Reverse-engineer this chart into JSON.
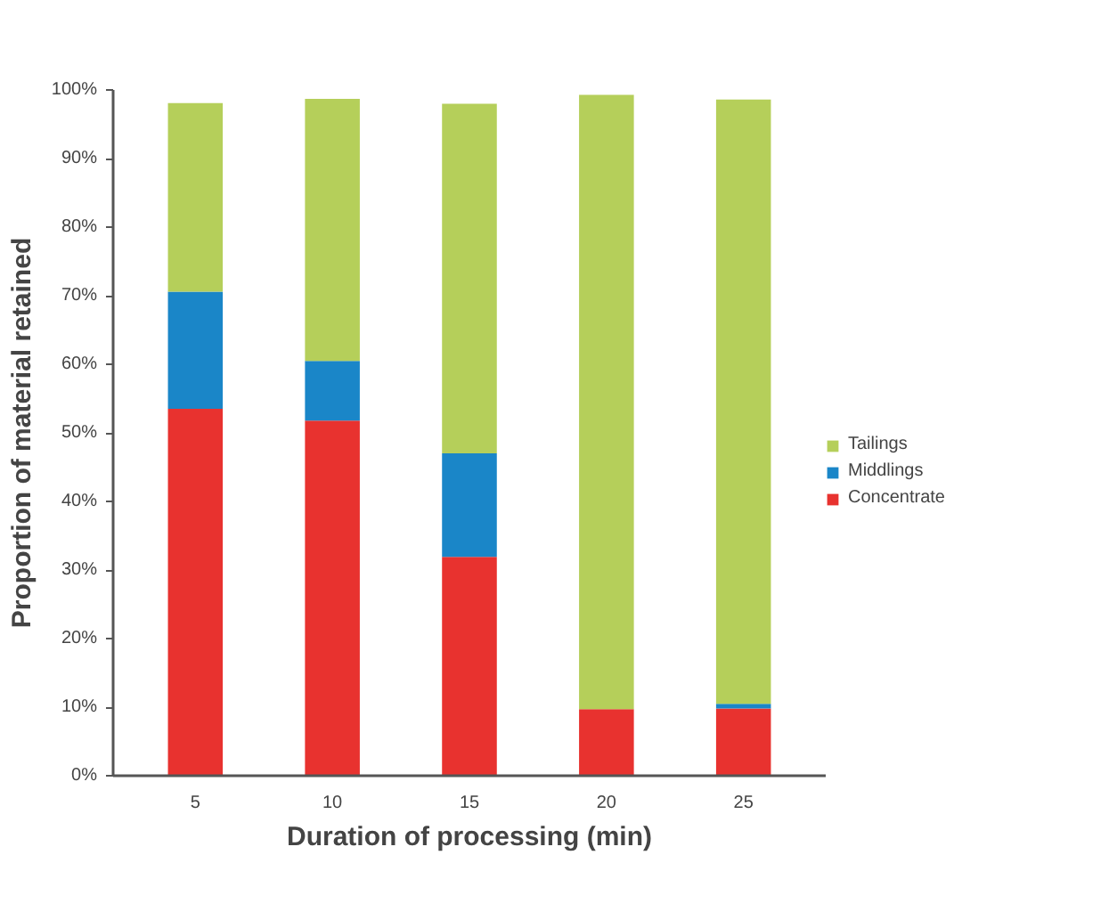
{
  "chart_data": {
    "type": "bar",
    "stacked": true,
    "xlabel": "Duration of processing (min)",
    "ylabel": "Proportion of material retained",
    "categories": [
      "5",
      "10",
      "15",
      "20",
      "25"
    ],
    "series": [
      {
        "name": "Concentrate",
        "color": "#e8322f",
        "values": [
          53.5,
          51.8,
          31.9,
          9.7,
          9.8
        ]
      },
      {
        "name": "Middlings",
        "color": "#1a86c8",
        "values": [
          17.1,
          8.7,
          15.1,
          0,
          0.7
        ]
      },
      {
        "name": "Tailings",
        "color": "#b5cf5a",
        "values": [
          27.5,
          38.2,
          51.0,
          89.6,
          88.1
        ]
      }
    ],
    "ylim": [
      0,
      100
    ],
    "yticks": [
      {
        "value": 0,
        "label": "0%"
      },
      {
        "value": 10,
        "label": "10%"
      },
      {
        "value": 20,
        "label": "20%"
      },
      {
        "value": 30,
        "label": "30%"
      },
      {
        "value": 40,
        "label": "40%"
      },
      {
        "value": 50,
        "label": "50%"
      },
      {
        "value": 60,
        "label": "60%"
      },
      {
        "value": 70,
        "label": "70%"
      },
      {
        "value": 80,
        "label": "80%"
      },
      {
        "value": 90,
        "label": "90%"
      },
      {
        "value": 100,
        "label": "100%"
      }
    ],
    "grid": false,
    "legend": "right"
  }
}
